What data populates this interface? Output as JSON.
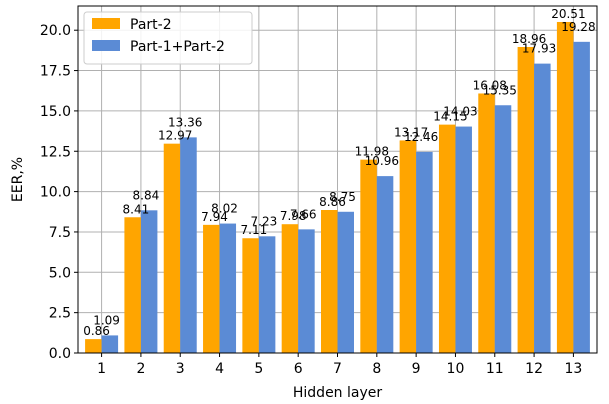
{
  "chart_data": {
    "type": "bar",
    "title": "",
    "xlabel": "Hidden layer",
    "ylabel": "EER,%",
    "categories": [
      "1",
      "2",
      "3",
      "4",
      "5",
      "6",
      "7",
      "8",
      "9",
      "10",
      "11",
      "12",
      "13"
    ],
    "series": [
      {
        "name": "Part-2",
        "color": "#ffa500",
        "values": [
          0.86,
          8.41,
          12.97,
          7.94,
          7.11,
          7.98,
          8.86,
          11.98,
          13.17,
          14.15,
          16.08,
          18.96,
          20.51
        ]
      },
      {
        "name": "Part-1+Part-2",
        "color": "#5b8bd5",
        "values": [
          1.09,
          8.84,
          13.36,
          8.02,
          7.23,
          7.66,
          8.75,
          10.96,
          12.46,
          14.03,
          15.35,
          17.93,
          19.28
        ]
      }
    ],
    "ylim": [
      0,
      21.5
    ],
    "yticks": [
      "0.0",
      "2.5",
      "5.0",
      "7.5",
      "10.0",
      "12.5",
      "15.0",
      "17.5",
      "20.0"
    ],
    "grid": true,
    "legend_position": "top-left"
  }
}
